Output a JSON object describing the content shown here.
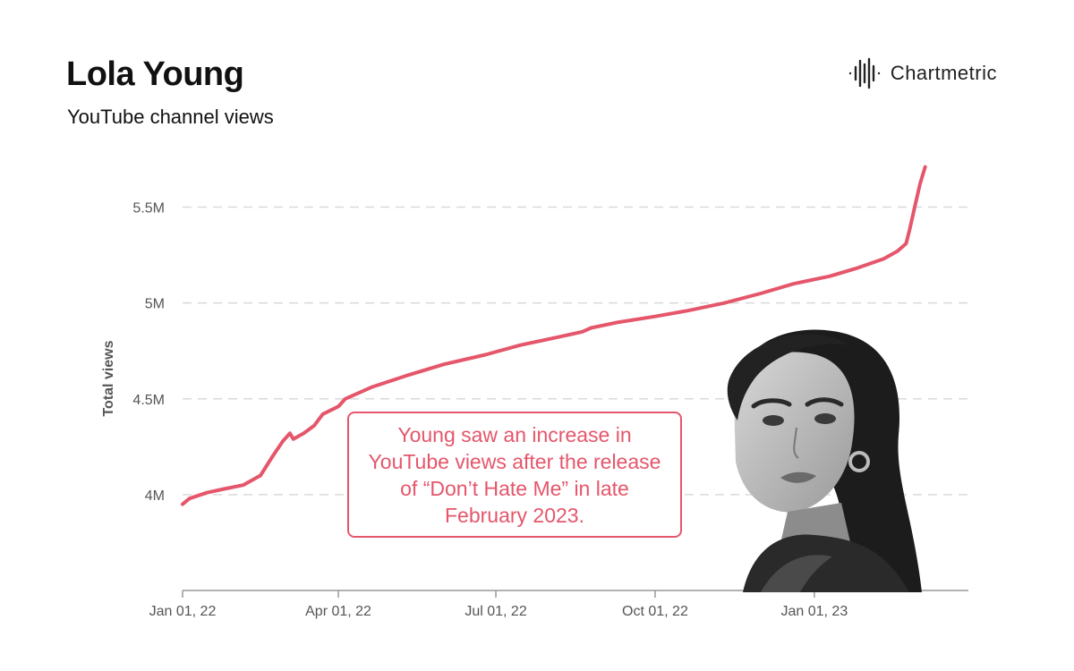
{
  "header": {
    "title": "Lola Young",
    "subtitle": "YouTube channel views"
  },
  "brand": {
    "name": "Chartmetric",
    "icon": "waveform-logo-icon"
  },
  "annotation": {
    "text": "Young saw an increase in YouTube views after the release of “Don’t Hate Me” in late February 2023."
  },
  "photo": {
    "description_icon": "artist-portrait-icon"
  },
  "colors": {
    "line": "#e5566b",
    "grid": "#d9d9d9",
    "axis_text": "#555555"
  },
  "chart_data": {
    "type": "line",
    "title": "YouTube channel views",
    "xlabel": "",
    "ylabel": "Total views",
    "ylim": [
      3500000,
      5750000
    ],
    "xlim": [
      "2022-01-01",
      "2023-03-31"
    ],
    "y_ticks": [
      4000000,
      4500000,
      5000000,
      5500000
    ],
    "y_tick_labels": [
      "4M",
      "4.5M",
      "5M",
      "5.5M"
    ],
    "x_ticks": [
      "2022-01-01",
      "2022-04-01",
      "2022-07-01",
      "2022-10-01",
      "2023-01-01"
    ],
    "x_tick_labels": [
      "Jan 01, 22",
      "Apr 01, 22",
      "Jul 01, 22",
      "Oct 01, 22",
      "Jan 01, 23"
    ],
    "grid": "horizontal dashed",
    "series": [
      {
        "color": "#e5566b",
        "points": [
          [
            "2022-01-01",
            3950000
          ],
          [
            "2022-01-05",
            3980000
          ],
          [
            "2022-01-15",
            4010000
          ],
          [
            "2022-01-25",
            4030000
          ],
          [
            "2022-02-05",
            4050000
          ],
          [
            "2022-02-15",
            4100000
          ],
          [
            "2022-02-22",
            4200000
          ],
          [
            "2022-02-28",
            4280000
          ],
          [
            "2022-03-04",
            4320000
          ],
          [
            "2022-03-06",
            4290000
          ],
          [
            "2022-03-12",
            4320000
          ],
          [
            "2022-03-18",
            4360000
          ],
          [
            "2022-03-23",
            4420000
          ],
          [
            "2022-04-01",
            4460000
          ],
          [
            "2022-04-05",
            4500000
          ],
          [
            "2022-04-20",
            4560000
          ],
          [
            "2022-05-10",
            4620000
          ],
          [
            "2022-06-01",
            4680000
          ],
          [
            "2022-06-25",
            4730000
          ],
          [
            "2022-07-15",
            4780000
          ],
          [
            "2022-08-05",
            4820000
          ],
          [
            "2022-08-20",
            4850000
          ],
          [
            "2022-08-25",
            4870000
          ],
          [
            "2022-09-10",
            4900000
          ],
          [
            "2022-10-01",
            4930000
          ],
          [
            "2022-10-20",
            4960000
          ],
          [
            "2022-11-10",
            5000000
          ],
          [
            "2022-12-01",
            5050000
          ],
          [
            "2022-12-20",
            5100000
          ],
          [
            "2023-01-10",
            5140000
          ],
          [
            "2023-01-25",
            5180000
          ],
          [
            "2023-02-10",
            5230000
          ],
          [
            "2023-02-18",
            5270000
          ],
          [
            "2023-02-23",
            5310000
          ],
          [
            "2023-02-25",
            5380000
          ],
          [
            "2023-02-28",
            5500000
          ],
          [
            "2023-03-03",
            5620000
          ],
          [
            "2023-03-06",
            5710000
          ]
        ]
      }
    ]
  }
}
